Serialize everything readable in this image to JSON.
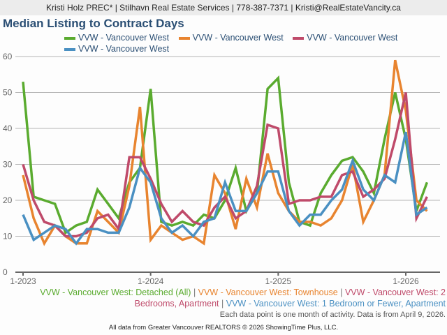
{
  "header": {
    "contact": "Kristi Holz PREC* | Stilhavn Real Estate Services | 778-387-7371 | Kristi@RealEstateVancity.ca"
  },
  "footer": {
    "note": "Each data point is one month of activity. Data is from April 9, 2026.",
    "source": "All data from Greater Vancouver REALTORS © 2026 ShowingTime Plus, LLC.",
    "separator": " | "
  },
  "chart_data": {
    "type": "line",
    "title": "Median Listing to Contract Days",
    "xlabel": "",
    "ylabel": "",
    "ylim": [
      0,
      60
    ],
    "yticks": [
      "0",
      "10",
      "20",
      "30",
      "40",
      "50",
      "60"
    ],
    "xtick_labels": [
      {
        "label": "1-2023",
        "index": 0
      },
      {
        "label": "1-2024",
        "index": 12
      },
      {
        "label": "1-2025",
        "index": 24
      },
      {
        "label": "1-2026",
        "index": 36
      }
    ],
    "grid": true,
    "legend_placement": "top",
    "x": [
      "1-2023",
      "2-2023",
      "3-2023",
      "4-2023",
      "5-2023",
      "6-2023",
      "7-2023",
      "8-2023",
      "9-2023",
      "10-2023",
      "11-2023",
      "12-2023",
      "1-2024",
      "2-2024",
      "3-2024",
      "4-2024",
      "5-2024",
      "6-2024",
      "7-2024",
      "8-2024",
      "9-2024",
      "10-2024",
      "11-2024",
      "12-2024",
      "1-2025",
      "2-2025",
      "3-2025",
      "4-2025",
      "5-2025",
      "6-2025",
      "7-2025",
      "8-2025",
      "9-2025",
      "10-2025",
      "11-2025",
      "12-2025",
      "1-2026",
      "2-2026",
      "3-2026"
    ],
    "series": [
      {
        "name": "VVW - Vancouver West",
        "full_name": "VVW - Vancouver West: Detached (All)",
        "color": "#5aab2f",
        "values": [
          53,
          21,
          20,
          19,
          11,
          13,
          14,
          23,
          19,
          15,
          25,
          29,
          51,
          14,
          13,
          14,
          13,
          16,
          15,
          20,
          29,
          17,
          22,
          51,
          54,
          25,
          14,
          13,
          22,
          27,
          31,
          32,
          28,
          22,
          37,
          50,
          37,
          17,
          25
        ]
      },
      {
        "name": "VVW - Vancouver West",
        "full_name": "VVW - Vancouver West: Townhouse",
        "color": "#e8842f",
        "values": [
          27,
          15,
          8,
          13,
          10,
          8,
          8,
          17,
          14,
          11,
          24,
          46,
          9,
          13,
          11,
          9,
          10,
          8,
          27,
          22,
          12,
          26,
          18,
          33,
          22,
          17,
          14,
          14,
          13,
          15,
          20,
          30,
          14,
          20,
          27,
          59,
          45,
          20,
          17
        ]
      },
      {
        "name": "VVW - Vancouver West",
        "full_name": "VVW - Vancouver West: 2 Bedrooms, Apartment",
        "color": "#bf4a6a",
        "values": [
          30,
          20,
          14,
          13,
          10,
          10,
          11,
          15,
          16,
          12,
          32,
          32,
          26,
          19,
          14,
          17,
          14,
          13,
          18,
          21,
          15,
          17,
          24,
          41,
          40,
          19,
          20,
          20,
          21,
          21,
          27,
          28,
          21,
          23,
          26,
          37,
          50,
          15,
          21
        ]
      },
      {
        "name": "VVW - Vancouver West",
        "full_name": "VVW - Vancouver West: 1 Bedroom or Fewer, Apartment",
        "color": "#4a90c2",
        "values": [
          16,
          9,
          11,
          13,
          12,
          8,
          12,
          12,
          11,
          11,
          18,
          29,
          25,
          15,
          11,
          13,
          10,
          14,
          15,
          25,
          17,
          17,
          22,
          28,
          28,
          17,
          13,
          16,
          16,
          20,
          23,
          31,
          23,
          20,
          27,
          25,
          39,
          16,
          18
        ]
      }
    ]
  }
}
